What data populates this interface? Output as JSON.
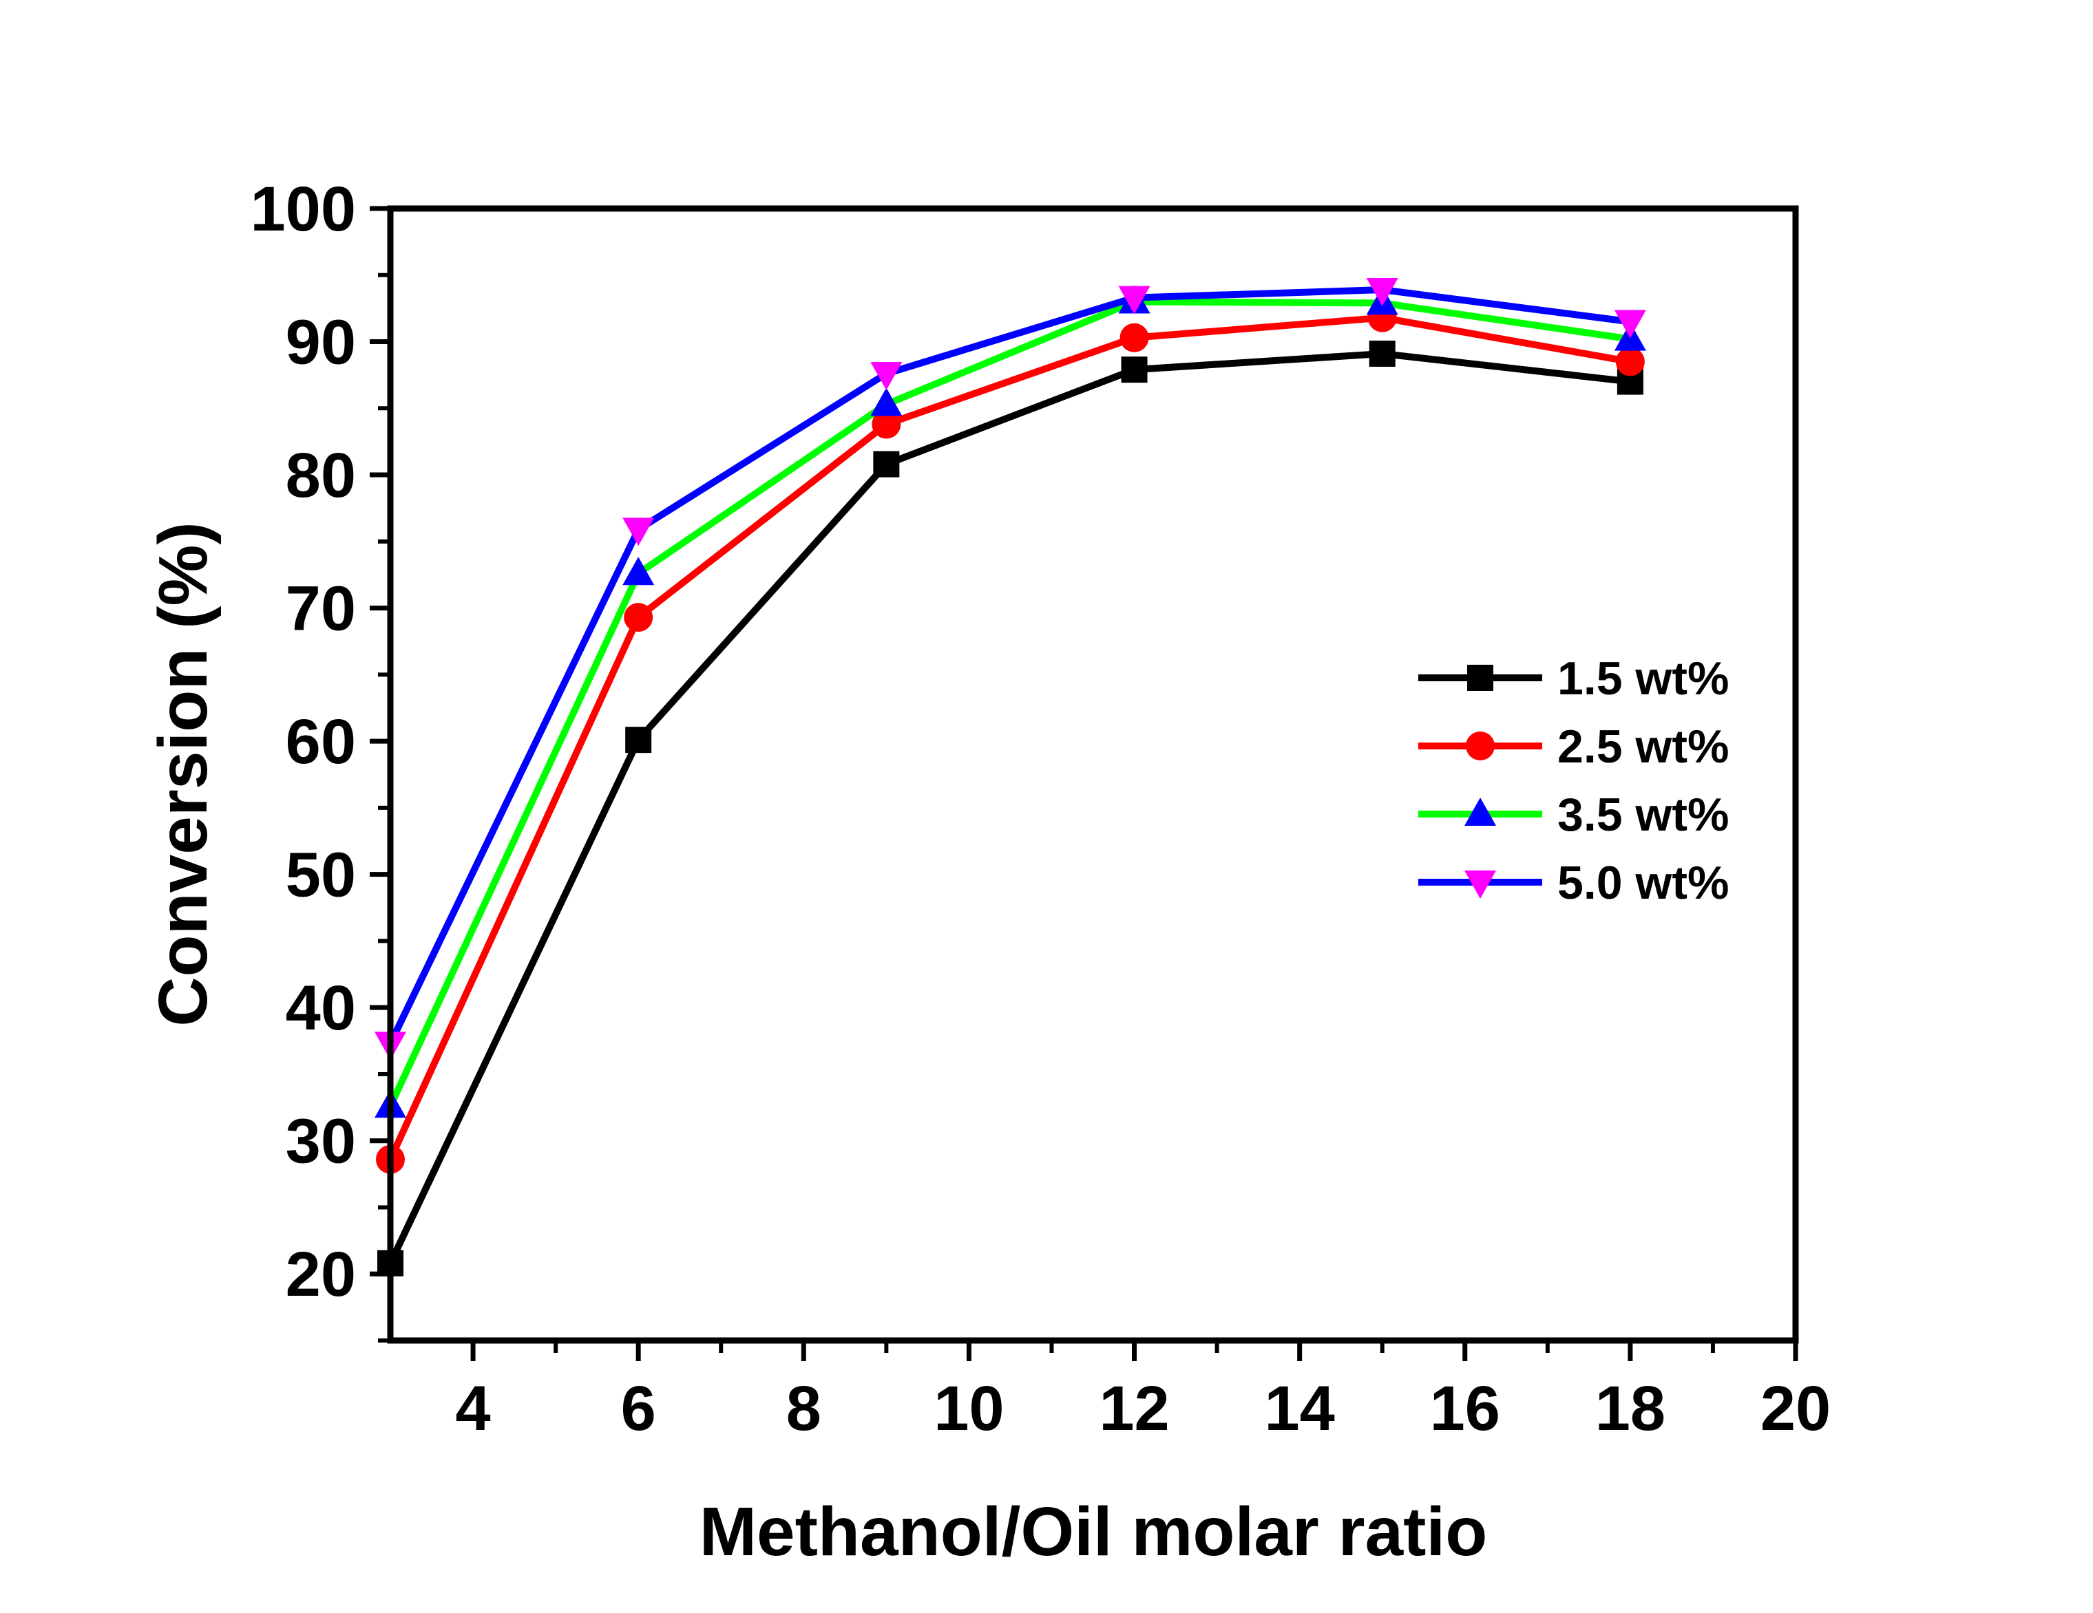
{
  "chart_data": {
    "type": "line",
    "title": "",
    "xlabel": "Methanol/Oil molar ratio",
    "ylabel": "Conversion (%)",
    "xlim": [
      3,
      20
    ],
    "ylim": [
      15,
      100
    ],
    "xticks": [
      4,
      6,
      8,
      10,
      12,
      14,
      16,
      18,
      20
    ],
    "yticks": [
      20,
      30,
      40,
      50,
      60,
      70,
      80,
      90,
      100
    ],
    "grid": false,
    "legend_position": "center-right",
    "x": [
      3,
      6,
      9,
      12,
      15,
      18
    ],
    "series": [
      {
        "name": "1.5 wt%",
        "color": "#000000",
        "marker": "square",
        "values": [
          20.8,
          60.1,
          80.8,
          87.9,
          89.1,
          87.0
        ]
      },
      {
        "name": "2.5 wt%",
        "color": "#ff0000",
        "marker": "circle",
        "values": [
          28.6,
          69.3,
          83.8,
          90.3,
          91.8,
          88.5
        ]
      },
      {
        "name": "3.5 wt%",
        "color": "#00ff00",
        "marker_color": "#0000ff",
        "marker": "triangle-up",
        "values": [
          32.6,
          72.6,
          85.3,
          93.0,
          92.9,
          90.2
        ]
      },
      {
        "name": "5.0 wt%",
        "color": "#0000ff",
        "marker_color": "#ff00ff",
        "marker": "triangle-down",
        "values": [
          37.3,
          75.9,
          87.6,
          93.3,
          93.9,
          91.5
        ]
      }
    ]
  }
}
